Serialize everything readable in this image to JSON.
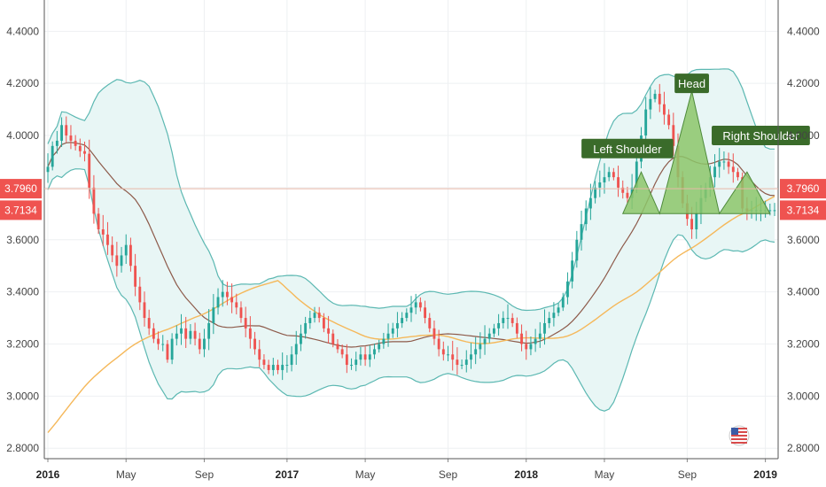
{
  "chart_data": {
    "type": "candlestick",
    "y_axis": {
      "min": 2.76,
      "max": 4.52,
      "ticks": [
        "2.8000",
        "3.0000",
        "3.2000",
        "3.4000",
        "3.6000",
        "3.8000",
        "4.0000",
        "4.2000",
        "4.4000"
      ]
    },
    "x_axis": {
      "labels": [
        {
          "text": "2016",
          "week": 0,
          "bold": true
        },
        {
          "text": "May",
          "week": 17,
          "bold": false
        },
        {
          "text": "Sep",
          "week": 34,
          "bold": false
        },
        {
          "text": "2017",
          "week": 52,
          "bold": true
        },
        {
          "text": "May",
          "week": 69,
          "bold": false
        },
        {
          "text": "Sep",
          "week": 87,
          "bold": false
        },
        {
          "text": "2018",
          "week": 104,
          "bold": true
        },
        {
          "text": "May",
          "week": 121,
          "bold": false
        },
        {
          "text": "Sep",
          "week": 139,
          "bold": false
        },
        {
          "text": "2019",
          "week": 156,
          "bold": true
        }
      ]
    },
    "grid": true,
    "price_tags": [
      {
        "value": "3.7960",
        "price": 3.796,
        "color": "#ef5350"
      },
      {
        "value": "3.7134",
        "price": 3.7134,
        "color": "#ef5350"
      }
    ],
    "patterns": [
      {
        "label": "Left Shoulder",
        "week": 126,
        "price": 3.95
      },
      {
        "label": "Head",
        "week": 140,
        "price": 4.2
      },
      {
        "label": "Right Shoulder",
        "week": 155,
        "price": 4.0
      }
    ],
    "head_and_shoulders_points": [
      {
        "week": 125,
        "price": 3.7
      },
      {
        "week": 129,
        "price": 3.86
      },
      {
        "week": 133,
        "price": 3.7
      },
      {
        "week": 140,
        "price": 4.17
      },
      {
        "week": 146,
        "price": 3.7
      },
      {
        "week": 152,
        "price": 3.86
      },
      {
        "week": 157,
        "price": 3.7
      }
    ],
    "colors": {
      "up": "#26a69a",
      "down": "#ef5350",
      "bb_band": "#5cb8b2",
      "bb_fill": "#e8f6f5",
      "bb_mid": "#8d5a4a",
      "ma_long": "#f5b85a",
      "pattern_fill": "#8cc66a",
      "pattern_label_bg": "#3a6b2a"
    },
    "weekly_close": [
      3.88,
      3.96,
      3.98,
      4.04,
      4.0,
      3.98,
      3.96,
      3.94,
      3.93,
      3.8,
      3.7,
      3.64,
      3.62,
      3.58,
      3.54,
      3.5,
      3.54,
      3.58,
      3.5,
      3.42,
      3.36,
      3.3,
      3.26,
      3.22,
      3.2,
      3.2,
      3.14,
      3.22,
      3.24,
      3.26,
      3.22,
      3.25,
      3.22,
      3.18,
      3.22,
      3.28,
      3.34,
      3.38,
      3.4,
      3.38,
      3.36,
      3.34,
      3.3,
      3.26,
      3.22,
      3.18,
      3.14,
      3.12,
      3.1,
      3.12,
      3.1,
      3.12,
      3.12,
      3.16,
      3.2,
      3.24,
      3.28,
      3.3,
      3.32,
      3.3,
      3.26,
      3.24,
      3.2,
      3.18,
      3.16,
      3.12,
      3.12,
      3.14,
      3.16,
      3.14,
      3.16,
      3.18,
      3.2,
      3.22,
      3.24,
      3.26,
      3.28,
      3.3,
      3.32,
      3.34,
      3.36,
      3.34,
      3.3,
      3.26,
      3.22,
      3.18,
      3.16,
      3.16,
      3.14,
      3.12,
      3.12,
      3.14,
      3.16,
      3.18,
      3.2,
      3.22,
      3.24,
      3.26,
      3.28,
      3.3,
      3.3,
      3.28,
      3.24,
      3.2,
      3.18,
      3.2,
      3.22,
      3.24,
      3.28,
      3.3,
      3.32,
      3.34,
      3.38,
      3.44,
      3.52,
      3.6,
      3.66,
      3.72,
      3.76,
      3.8,
      3.82,
      3.84,
      3.86,
      3.84,
      3.8,
      3.78,
      3.76,
      3.8,
      3.9,
      4.0,
      4.1,
      4.14,
      4.16,
      4.12,
      4.08,
      4.04,
      3.96,
      3.84,
      3.74,
      3.68,
      3.64,
      3.7,
      3.76,
      3.8,
      3.84,
      3.88,
      3.9,
      3.9,
      3.88,
      3.86,
      3.84,
      3.72,
      3.71,
      3.7134,
      3.7134,
      3.7134,
      3.7134,
      3.7134,
      3.7134
    ]
  }
}
